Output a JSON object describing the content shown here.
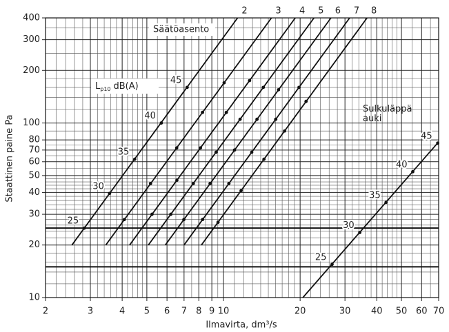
{
  "chart_data": {
    "type": "line",
    "x_label": "Ilmavirta, dm³/s",
    "y_label": "Staattinen paine Pa",
    "xscale": "log",
    "yscale": "log",
    "xlim": [
      2,
      70
    ],
    "ylim": [
      10,
      400
    ],
    "xticks": [
      2,
      3,
      4,
      5,
      6,
      7,
      8,
      9,
      10,
      20,
      30,
      40,
      50,
      60,
      70
    ],
    "yticks": [
      10,
      20,
      30,
      40,
      50,
      60,
      70,
      80,
      100,
      200,
      300,
      400
    ],
    "xminor": [
      2.2,
      2.4,
      2.6,
      2.8,
      3.2,
      3.4,
      3.6,
      3.8,
      4.2,
      4.4,
      4.6,
      4.8,
      5.5,
      6.5,
      7.5,
      8.5,
      9.5,
      11,
      12,
      13,
      14,
      15,
      16,
      17,
      18,
      19,
      22,
      24,
      26,
      28,
      32,
      34,
      36,
      38,
      42,
      44,
      46,
      48,
      55,
      65
    ],
    "yminor": [
      12,
      14,
      16,
      18,
      22,
      24,
      26,
      28,
      32,
      34,
      36,
      38,
      42,
      44,
      46,
      48,
      55,
      65,
      75,
      90,
      120,
      140,
      160,
      180,
      250,
      350
    ],
    "ref_lines": [
      15,
      25
    ],
    "grid": true,
    "annotations": {
      "setting": "Säätöasento",
      "noise": {
        "symbol": "L",
        "sub": "p10",
        "unit": "dB(A)"
      }
    },
    "series": [
      {
        "name": "2",
        "color": "#111111",
        "x": [
          2.54,
          11.36
        ],
        "y": [
          20,
          400
        ],
        "markers": {
          "x": [
            2.84,
            3.57,
            4.48,
            5.7,
            7.2
          ],
          "y": [
            25,
            39.5,
            62,
            100,
            160
          ],
          "labels": [
            25,
            30,
            35,
            40,
            45
          ]
        }
      },
      {
        "name": "3",
        "color": "#111111",
        "x": [
          3.45,
          15.43
        ],
        "y": [
          20,
          400
        ],
        "markers": {
          "x": [
            4.08,
            5.17,
            6.55,
            8.27,
            10.06
          ],
          "y": [
            28,
            45,
            72,
            115,
            170
          ]
        }
      },
      {
        "name": "4",
        "color": "#111111",
        "x": [
          4.28,
          19.14
        ],
        "y": [
          20,
          400
        ],
        "markers": {
          "x": [
            5.24,
            6.56,
            8.12,
            10.26,
            12.66
          ],
          "y": [
            30,
            47,
            72,
            115,
            175
          ]
        }
      },
      {
        "name": "5",
        "color": "#111111",
        "x": [
          5.07,
          22.67
        ],
        "y": [
          20,
          400
        ],
        "markers": {
          "x": [
            6.21,
            7.61,
            9.35,
            11.62,
            14.34
          ],
          "y": [
            30,
            45,
            68,
            105,
            160
          ]
        }
      },
      {
        "name": "6",
        "color": "#111111",
        "x": [
          5.91,
          26.43
        ],
        "y": [
          20,
          400
        ],
        "markers": {
          "x": [
            6.99,
            8.86,
            11.05,
            13.54,
            16.45
          ],
          "y": [
            28,
            45,
            70,
            105,
            155
          ]
        }
      },
      {
        "name": "7",
        "color": "#111111",
        "x": [
          7.0,
          31.3
        ],
        "y": [
          20,
          400
        ],
        "markers": {
          "x": [
            8.28,
            10.5,
            12.91,
            16.04,
            19.8
          ],
          "y": [
            28,
            45,
            68,
            105,
            160
          ]
        }
      },
      {
        "name": "8",
        "color": "#111111",
        "x": [
          8.19,
          36.63
        ],
        "y": [
          20,
          400
        ],
        "markers": {
          "x": [
            9.52,
            11.73,
            14.42,
            17.38,
            21.1
          ],
          "y": [
            27,
            41,
            62,
            90,
            133
          ]
        }
      },
      {
        "name": "Sulkuläppä auki",
        "color": "#111111",
        "x": [
          20.5,
          70
        ],
        "y": [
          10,
          78
        ],
        "markers": {
          "x": [
            26.7,
            34.3,
            43.5,
            55.4,
            69.4
          ],
          "y": [
            15.5,
            23.6,
            35.1,
            52.6,
            76.7
          ],
          "labels": [
            25,
            30,
            35,
            40,
            45
          ]
        }
      }
    ]
  }
}
